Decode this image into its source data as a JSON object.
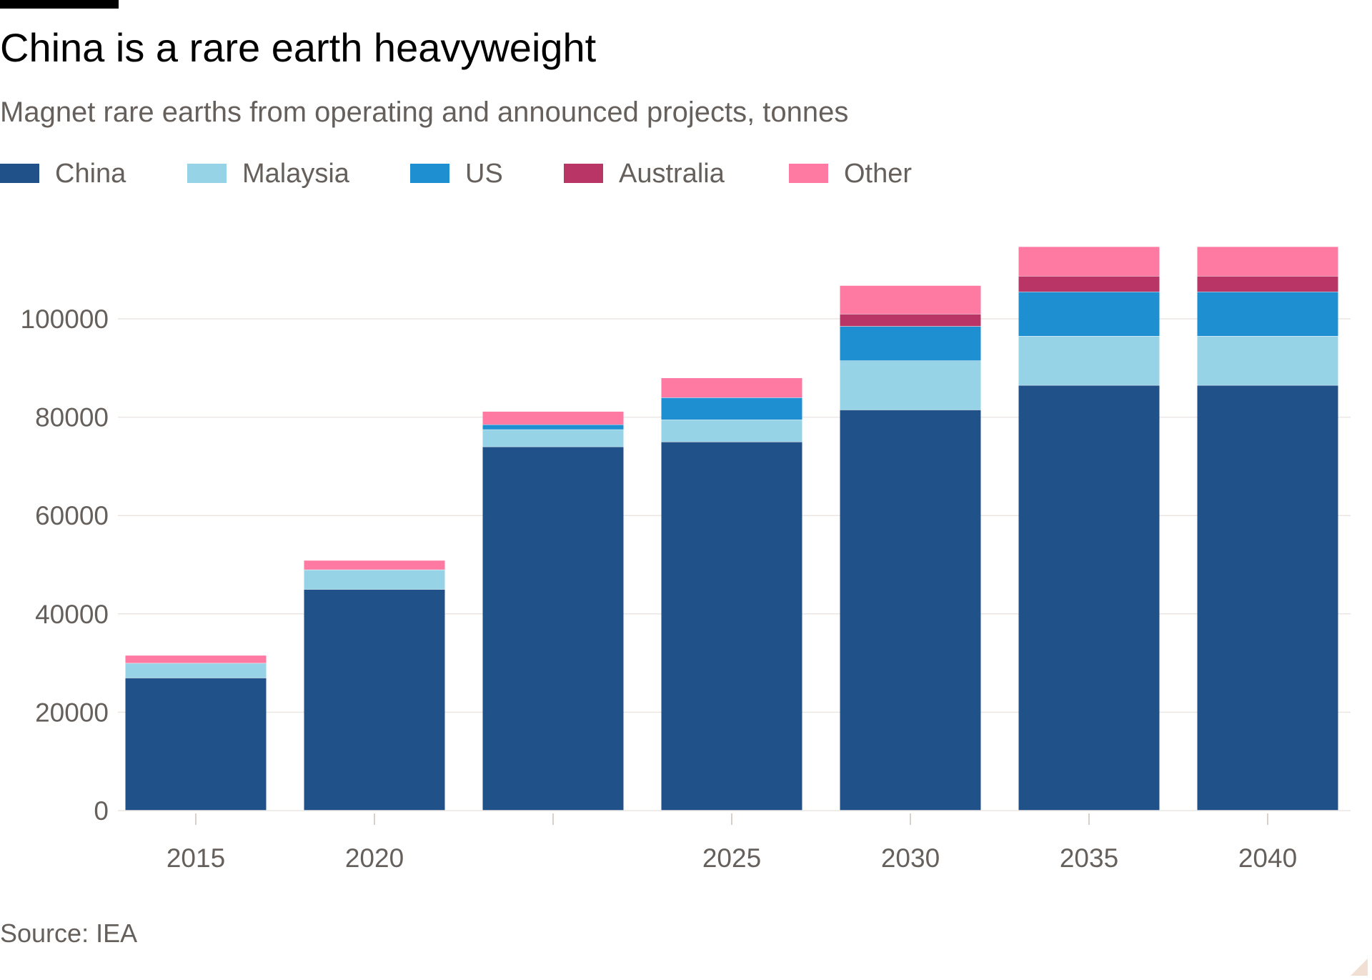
{
  "header": {
    "title": "China is a rare earth heavyweight",
    "subtitle": "Magnet rare earths from operating and announced projects, tonnes"
  },
  "legend": [
    {
      "label": "China",
      "color": "#205189"
    },
    {
      "label": "Malaysia",
      "color": "#96d3e6"
    },
    {
      "label": "US",
      "color": "#1e8fd0"
    },
    {
      "label": "Australia",
      "color": "#b83565"
    },
    {
      "label": "Other",
      "color": "#ff7aa3"
    }
  ],
  "footer": {
    "source": "Source: IEA"
  },
  "chart_data": {
    "type": "bar",
    "stacked": true,
    "title": "China is a rare earth heavyweight",
    "subtitle": "Magnet rare earths from operating and announced projects, tonnes",
    "xlabel": "",
    "ylabel": "",
    "ylim": [
      0,
      115000
    ],
    "yticks": [
      0,
      20000,
      40000,
      60000,
      80000,
      100000
    ],
    "ytick_labels": [
      "0",
      "20000",
      "40000",
      "60000",
      "80000",
      "100000"
    ],
    "categories": [
      "2015",
      "2020",
      "",
      "2025",
      "2030",
      "2035",
      "2040"
    ],
    "x_tick_labels": [
      "2015",
      "2020",
      "",
      "2025",
      "2030",
      "2035",
      "2040"
    ],
    "grid": true,
    "legend_position": "top",
    "series": [
      {
        "name": "China",
        "color": "#205189",
        "values": [
          27000,
          45000,
          74000,
          75000,
          81500,
          86500,
          86500
        ]
      },
      {
        "name": "Malaysia",
        "color": "#96d3e6",
        "values": [
          3000,
          4000,
          3500,
          4500,
          10000,
          10000,
          10000
        ]
      },
      {
        "name": "US",
        "color": "#1e8fd0",
        "values": [
          0,
          0,
          1000,
          4500,
          7000,
          9000,
          9000
        ]
      },
      {
        "name": "Australia",
        "color": "#b83565",
        "values": [
          0,
          0,
          0,
          0,
          2500,
          3200,
          3200
        ]
      },
      {
        "name": "Other",
        "color": "#ff7aa3",
        "values": [
          1600,
          1900,
          2700,
          4000,
          5800,
          6000,
          6000
        ]
      }
    ]
  }
}
